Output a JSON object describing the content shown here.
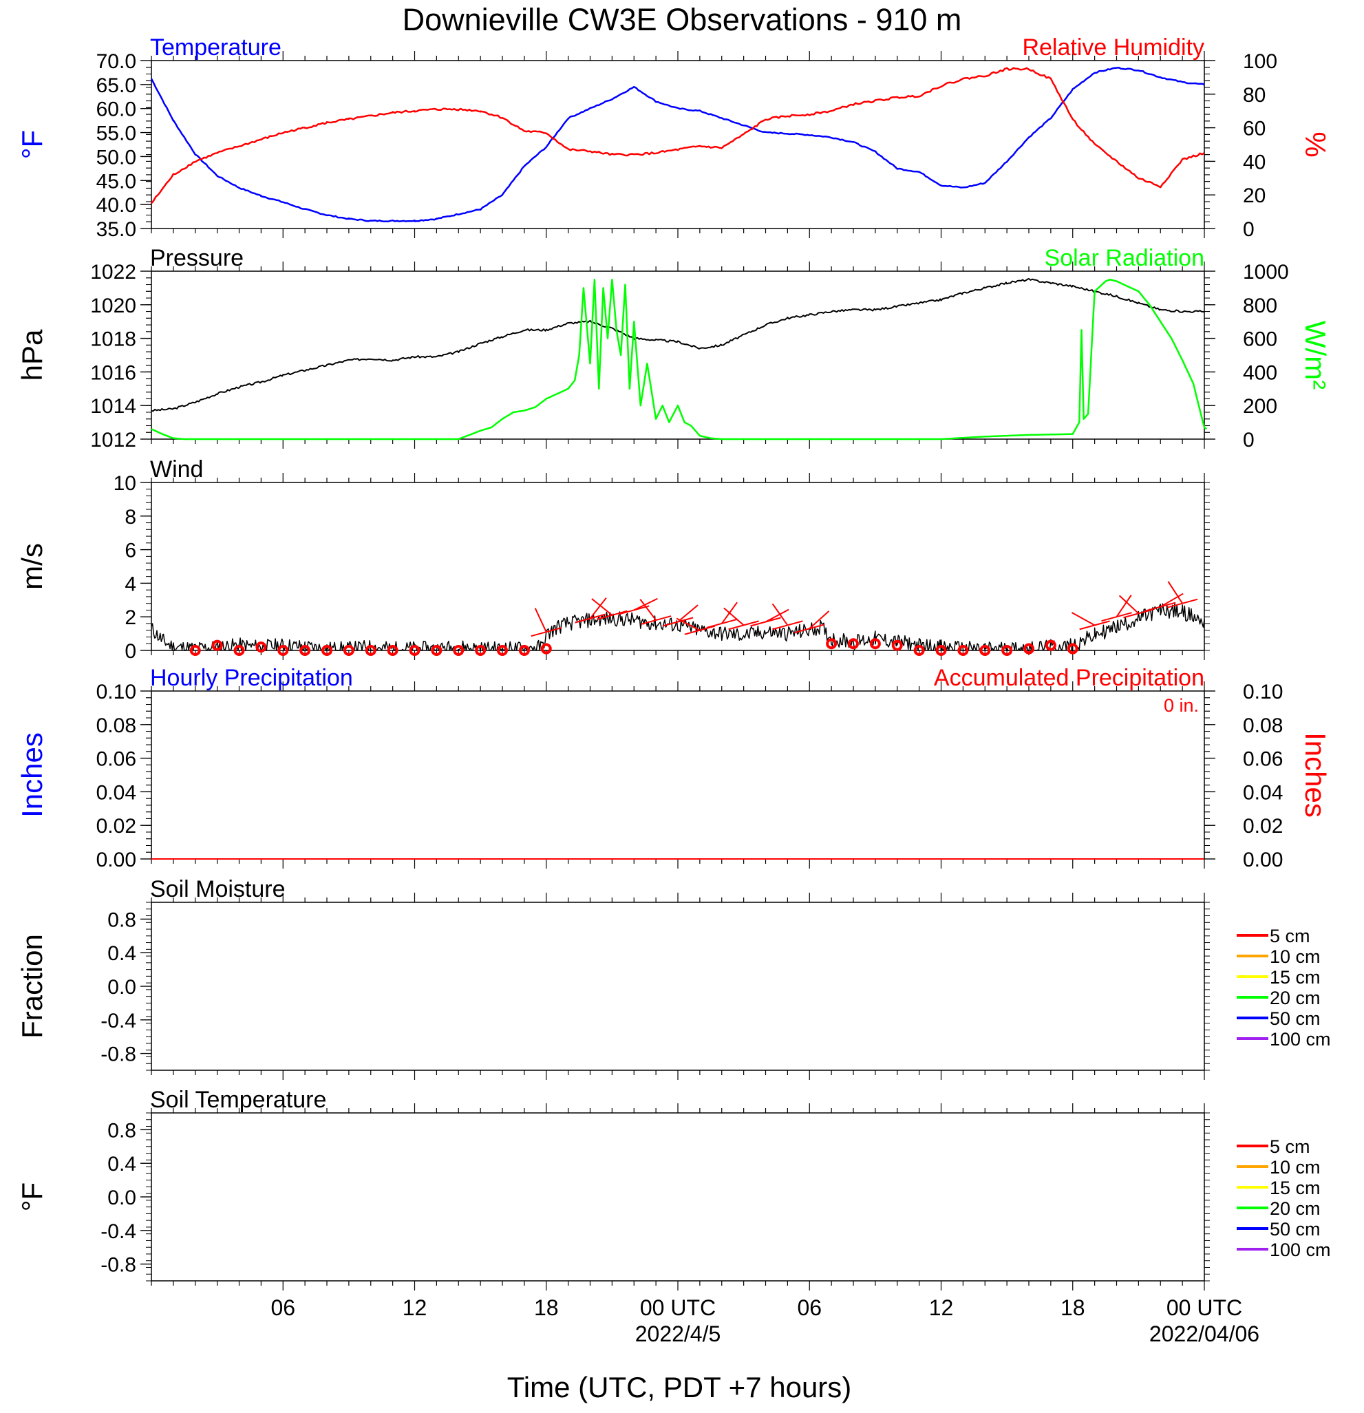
{
  "title": "Downieville CW3E Observations - 910 m",
  "x_axis": {
    "label": "Time (UTC, PDT +7 hours)",
    "ticks": [
      {
        "hours": 6,
        "label": "06"
      },
      {
        "hours": 12,
        "label": "12"
      },
      {
        "hours": 18,
        "label": "18"
      },
      {
        "hours": 24,
        "label": "00 UTC",
        "date": "2022/4/5"
      },
      {
        "hours": 30,
        "label": "06"
      },
      {
        "hours": 36,
        "label": "12"
      },
      {
        "hours": 42,
        "label": "18"
      },
      {
        "hours": 48,
        "label": "00 UTC",
        "date": "2022/04/06"
      }
    ]
  },
  "chart_data": [
    {
      "id": "temp_rh",
      "type": "line",
      "title_left": "Temperature",
      "title_right": "Relative Humidity",
      "ylabel_left": "°F",
      "ylabel_right": "%",
      "ylim_left": [
        35,
        70
      ],
      "ylim_right": [
        0,
        100
      ],
      "yticks_left": [
        "35.0",
        "40.0",
        "45.0",
        "50.0",
        "55.0",
        "60.0",
        "65.0",
        "70.0"
      ],
      "yticks_right": [
        "0",
        "20",
        "40",
        "60",
        "80",
        "100"
      ],
      "x_hours": [
        0,
        1,
        2,
        3,
        4,
        5,
        6,
        7,
        8,
        9,
        10,
        11,
        12,
        13,
        14,
        15,
        16,
        17,
        18,
        19,
        20,
        21,
        22,
        23,
        24,
        25,
        26,
        27,
        28,
        29,
        30,
        31,
        32,
        33,
        34,
        35,
        36,
        37,
        38,
        39,
        40,
        41,
        42,
        43,
        44,
        45,
        46,
        47,
        48
      ],
      "series": [
        {
          "name": "Temperature",
          "axis": "left",
          "color": "#0000ff",
          "values": [
            66.2,
            57.5,
            50.5,
            46,
            43.5,
            41.8,
            40.5,
            39,
            37.8,
            37,
            36.6,
            36.6,
            36.6,
            37,
            38,
            39,
            42,
            48,
            52,
            58,
            60,
            62,
            64.5,
            61.5,
            60,
            59.5,
            58,
            56.5,
            55,
            54.8,
            54.5,
            54,
            53,
            51,
            47.5,
            46.8,
            44,
            43.5,
            44.5,
            49,
            54,
            58,
            64,
            67.5,
            68.5,
            68,
            66.5,
            65.5,
            65
          ]
        },
        {
          "name": "Relative Humidity",
          "axis": "right",
          "color": "#ff0000",
          "values": [
            15,
            32,
            40,
            45,
            49,
            53,
            57,
            60,
            63,
            65,
            67,
            69,
            70,
            71,
            71,
            70,
            66,
            58,
            57,
            47,
            46,
            44,
            44,
            45,
            47,
            49,
            48,
            56,
            65,
            67,
            68,
            70,
            74,
            76,
            78,
            79,
            85,
            89,
            91,
            95,
            95,
            89,
            65,
            50,
            40,
            30,
            25,
            41,
            45
          ]
        }
      ]
    },
    {
      "id": "pressure_solar",
      "type": "line",
      "title_left": "Pressure",
      "title_right": "Solar Radiation",
      "ylabel_left": "hPa",
      "ylabel_right": "W/m²",
      "ylim_left": [
        1012,
        1022
      ],
      "ylim_right": [
        0,
        1000
      ],
      "yticks_left": [
        "1012",
        "1014",
        "1016",
        "1018",
        "1020",
        "1022"
      ],
      "yticks_right": [
        "0",
        "200",
        "400",
        "600",
        "800",
        "1000"
      ],
      "pressure": {
        "name": "Pressure",
        "color": "#000000",
        "x_hours": [
          0,
          1,
          2,
          3,
          4,
          5,
          6,
          7,
          8,
          9,
          10,
          11,
          12,
          13,
          14,
          15,
          16,
          17,
          18,
          19,
          20,
          21,
          22,
          23,
          24,
          25,
          26,
          27,
          28,
          29,
          30,
          31,
          32,
          33,
          34,
          35,
          36,
          37,
          38,
          39,
          40,
          41,
          42,
          43,
          44,
          45,
          46,
          47,
          48
        ],
        "values": [
          1013.7,
          1013.8,
          1014.2,
          1014.7,
          1015.1,
          1015.4,
          1015.8,
          1016.1,
          1016.4,
          1016.7,
          1016.8,
          1016.7,
          1016.9,
          1016.9,
          1017.2,
          1017.7,
          1018.1,
          1018.5,
          1018.5,
          1018.9,
          1019.0,
          1018.6,
          1018.0,
          1017.9,
          1017.8,
          1017.4,
          1017.6,
          1018.2,
          1018.8,
          1019.2,
          1019.4,
          1019.6,
          1019.7,
          1019.7,
          1019.9,
          1020.1,
          1020.3,
          1020.7,
          1021.0,
          1021.3,
          1021.5,
          1021.3,
          1021.1,
          1020.8,
          1020.5,
          1020.1,
          1019.7,
          1019.6,
          1019.6
        ]
      },
      "solar": {
        "name": "Solar Radiation",
        "color": "#00ff00",
        "x_hours": [
          0,
          0.5,
          1,
          1.5,
          2,
          5,
          9,
          12,
          13,
          14,
          15,
          15.5,
          16,
          16.5,
          17,
          17.5,
          18,
          18.5,
          19,
          19.3,
          19.5,
          19.7,
          20,
          20.2,
          20.4,
          20.6,
          20.8,
          21,
          21.2,
          21.4,
          21.6,
          21.8,
          22,
          22.3,
          22.6,
          23,
          23.3,
          23.6,
          24,
          24.3,
          24.6,
          25,
          25.5,
          26,
          28,
          32,
          36,
          38,
          40,
          42,
          42.3,
          42.4,
          42.5,
          42.7,
          43,
          43.5,
          43.7,
          44,
          45,
          45.5,
          46,
          46.5,
          47,
          47.5,
          47.9,
          48,
          48.1
        ],
        "values": [
          60,
          30,
          5,
          0,
          0,
          0,
          0,
          0,
          0,
          0,
          50,
          70,
          120,
          160,
          170,
          190,
          240,
          270,
          300,
          350,
          500,
          900,
          450,
          950,
          300,
          900,
          600,
          950,
          650,
          500,
          920,
          300,
          700,
          200,
          450,
          120,
          200,
          100,
          200,
          100,
          80,
          20,
          5,
          0,
          0,
          0,
          0,
          15,
          25,
          30,
          100,
          650,
          120,
          150,
          880,
          940,
          950,
          940,
          880,
          800,
          700,
          600,
          470,
          330,
          120,
          70,
          60
        ]
      }
    },
    {
      "id": "wind",
      "type": "line",
      "title_left": "Wind",
      "ylabel_left": "m/s",
      "ylim_left": [
        0,
        10
      ],
      "yticks_left": [
        "0",
        "2",
        "4",
        "6",
        "8",
        "10"
      ],
      "series": [
        {
          "name": "Wind",
          "color": "#000000",
          "x_hours": [
            0,
            0.5,
            1,
            2,
            3,
            4,
            5,
            6,
            7,
            8,
            9,
            10,
            11,
            12,
            13,
            14,
            15,
            16,
            17,
            17.8,
            18,
            18.5,
            19,
            20,
            21,
            22,
            23,
            24,
            25,
            26,
            27,
            28,
            29,
            30,
            30.5,
            31,
            32,
            33,
            34,
            35,
            36,
            37,
            38,
            39,
            40,
            41,
            42,
            43,
            44,
            45,
            46,
            47,
            48
          ],
          "values": [
            1.3,
            0.6,
            0.2,
            0.1,
            0.2,
            0.3,
            0.2,
            0.3,
            0.2,
            0.1,
            0.1,
            0.2,
            0.1,
            0.1,
            0.1,
            0.2,
            0.1,
            0.1,
            0.1,
            0.2,
            0.9,
            1.4,
            1.6,
            1.8,
            1.9,
            1.8,
            1.6,
            1.5,
            1.2,
            1.0,
            0.9,
            1.1,
            1.0,
            1.2,
            1.4,
            0.7,
            0.5,
            0.7,
            0.5,
            0.3,
            0.2,
            0.1,
            0.1,
            0.1,
            0.1,
            0.2,
            0.3,
            0.9,
            1.4,
            1.9,
            2.4,
            2.3,
            1.7
          ]
        }
      ],
      "hourly_markers": {
        "color": "#ff0000",
        "x_hours": [
          2,
          3,
          4,
          5,
          6,
          7,
          8,
          9,
          10,
          11,
          12,
          13,
          14,
          15,
          16,
          17,
          18,
          31,
          32,
          33,
          34,
          35,
          36,
          37,
          38,
          39,
          40,
          41,
          42
        ],
        "values": [
          0,
          0.3,
          0,
          0.2,
          0,
          0,
          0,
          0,
          0,
          0,
          0,
          0,
          0,
          0,
          0,
          0,
          0.1,
          0.4,
          0.4,
          0.4,
          0.3,
          0,
          0,
          0,
          0,
          0,
          0.1,
          0.3,
          0.1
        ]
      },
      "wind_barbs": {
        "color": "#ff0000",
        "x_hours": [
          18,
          20,
          21,
          22,
          23,
          24,
          25,
          26,
          27,
          28,
          29,
          30,
          43,
          44,
          45,
          46,
          47
        ],
        "values": [
          1.1,
          1.9,
          2.1,
          2.4,
          1.8,
          1.7,
          1.2,
          1.6,
          1.5,
          1.7,
          1.5,
          1.3,
          1.5,
          2.0,
          2.2,
          2.6,
          2.8
        ]
      }
    },
    {
      "id": "precip",
      "type": "line",
      "title_left": "Hourly Precipitation",
      "title_right": "Accumulated Precipitation",
      "annotation": "0 in.",
      "ylabel_left": "Inches",
      "ylabel_right": "Inches",
      "ylim_left": [
        0,
        0.1
      ],
      "ylim_right": [
        0,
        0.1
      ],
      "yticks_left": [
        "0.00",
        "0.02",
        "0.04",
        "0.06",
        "0.08",
        "0.10"
      ],
      "yticks_right": [
        "0.00",
        "0.02",
        "0.04",
        "0.06",
        "0.08",
        "0.10"
      ],
      "series": [
        {
          "name": "Hourly Precipitation",
          "color": "#0000ff",
          "x_hours": [
            0,
            48
          ],
          "values": [
            0,
            0
          ]
        },
        {
          "name": "Accumulated Precipitation",
          "color": "#ff0000",
          "x_hours": [
            0,
            48
          ],
          "values": [
            0,
            0
          ]
        }
      ]
    },
    {
      "id": "soil_moisture",
      "type": "line",
      "title_left": "Soil Moisture",
      "ylabel_left": "Fraction",
      "ylim_left": [
        -1,
        1
      ],
      "yticks_left": [
        "-0.8",
        "-0.4",
        "0.0",
        "0.4",
        "0.8"
      ],
      "legend": [
        {
          "name": "5 cm",
          "color": "#ff0000"
        },
        {
          "name": "10 cm",
          "color": "#ffa500"
        },
        {
          "name": "15 cm",
          "color": "#ffff00"
        },
        {
          "name": "20 cm",
          "color": "#00ff00"
        },
        {
          "name": "50 cm",
          "color": "#0000ff"
        },
        {
          "name": "100 cm",
          "color": "#a020f0"
        }
      ],
      "series": []
    },
    {
      "id": "soil_temperature",
      "type": "line",
      "title_left": "Soil Temperature",
      "ylabel_left": "°F",
      "ylim_left": [
        -1,
        1
      ],
      "yticks_left": [
        "-0.8",
        "-0.4",
        "0.0",
        "0.4",
        "0.8"
      ],
      "legend": [
        {
          "name": "5 cm",
          "color": "#ff0000"
        },
        {
          "name": "10 cm",
          "color": "#ffa500"
        },
        {
          "name": "15 cm",
          "color": "#ffff00"
        },
        {
          "name": "20 cm",
          "color": "#00ff00"
        },
        {
          "name": "50 cm",
          "color": "#0000ff"
        },
        {
          "name": "100 cm",
          "color": "#a020f0"
        }
      ],
      "series": []
    }
  ]
}
